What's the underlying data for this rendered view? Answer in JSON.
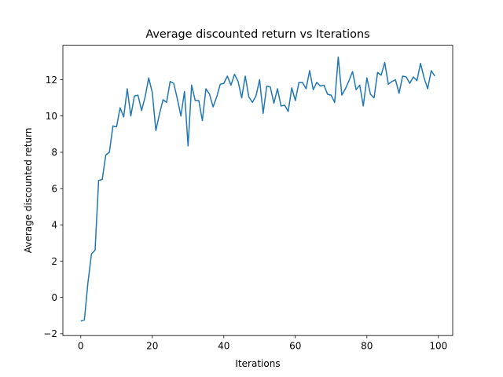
{
  "chart_data": {
    "type": "line",
    "title": "Average discounted return vs Iterations",
    "xlabel": "Iterations",
    "ylabel": "Average discounted return",
    "xlim": [
      -5,
      104
    ],
    "ylim": [
      -2.1,
      13.9
    ],
    "xticks": [
      0,
      20,
      40,
      60,
      80,
      100
    ],
    "yticks": [
      -2,
      0,
      2,
      4,
      6,
      8,
      10,
      12
    ],
    "grid": false,
    "series_color": "#1f77b4",
    "series": [
      {
        "x": [
          0,
          1,
          2,
          3,
          4,
          5,
          6,
          7,
          8,
          9,
          10,
          11,
          12,
          13,
          14,
          15,
          16,
          17,
          18,
          19,
          20,
          21,
          22,
          23,
          24,
          25,
          26,
          27,
          28,
          29,
          30,
          31,
          32,
          33,
          34,
          35,
          36,
          37,
          38,
          39,
          40,
          41,
          42,
          43,
          44,
          45,
          46,
          47,
          48,
          49,
          50,
          51,
          52,
          53,
          54,
          55,
          56,
          57,
          58,
          59,
          60,
          61,
          62,
          63,
          64,
          65,
          66,
          67,
          68,
          69,
          70,
          71,
          72,
          73,
          74,
          75,
          76,
          77,
          78,
          79,
          80,
          81,
          82,
          83,
          84,
          85,
          86,
          87,
          88,
          89,
          90,
          91,
          92,
          93,
          94,
          95,
          96,
          97,
          98,
          99
        ],
        "y": [
          -1.3,
          -1.25,
          0.8,
          2.4,
          2.6,
          6.45,
          6.5,
          7.85,
          8.0,
          9.45,
          9.4,
          10.45,
          9.95,
          11.5,
          10.0,
          11.1,
          11.15,
          10.3,
          11.05,
          12.1,
          11.3,
          9.2,
          10.1,
          10.9,
          10.75,
          11.9,
          11.8,
          10.95,
          10.0,
          11.35,
          8.35,
          11.7,
          10.85,
          10.85,
          9.75,
          11.5,
          11.2,
          10.5,
          11.05,
          11.75,
          11.8,
          12.2,
          11.7,
          12.3,
          11.9,
          11.0,
          12.2,
          11.05,
          10.75,
          11.1,
          12.0,
          10.15,
          11.65,
          11.6,
          10.7,
          11.5,
          10.55,
          10.6,
          10.25,
          11.55,
          10.85,
          11.85,
          11.85,
          11.5,
          12.5,
          11.45,
          11.85,
          11.65,
          11.7,
          11.2,
          11.15,
          10.75,
          13.25,
          11.15,
          11.5,
          11.95,
          12.45,
          11.45,
          11.7,
          10.55,
          12.1,
          11.2,
          11.0,
          12.4,
          12.25,
          12.95,
          11.75,
          11.9,
          12.0,
          11.25,
          12.2,
          12.15,
          11.8,
          12.15,
          11.95,
          12.9,
          12.1,
          11.5,
          12.5,
          12.2
        ]
      }
    ]
  }
}
